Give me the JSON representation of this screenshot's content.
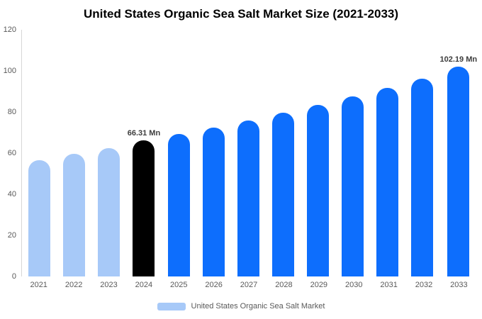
{
  "chart_data": {
    "type": "bar",
    "title": "United States Organic Sea Salt Market Size (2021-2033)",
    "categories": [
      "2021",
      "2022",
      "2023",
      "2024",
      "2025",
      "2026",
      "2027",
      "2028",
      "2029",
      "2030",
      "2031",
      "2032",
      "2033"
    ],
    "values": [
      56.5,
      59.5,
      62.3,
      66.31,
      69.2,
      72.3,
      75.8,
      79.8,
      83.5,
      87.5,
      91.6,
      96.3,
      102.19
    ],
    "unit": "Mn",
    "xlabel": "",
    "ylabel": "",
    "ylim": [
      0,
      120
    ],
    "yticks": [
      0,
      20,
      40,
      60,
      80,
      100,
      120
    ],
    "grid": false,
    "bar_colors": [
      "#a7c9f8",
      "#a7c9f8",
      "#a7c9f8",
      "#000000",
      "#0d6efd",
      "#0d6efd",
      "#0d6efd",
      "#0d6efd",
      "#0d6efd",
      "#0d6efd",
      "#0d6efd",
      "#0d6efd",
      "#0d6efd"
    ],
    "annotations": [
      {
        "index": 3,
        "text": "66.31 Mn"
      },
      {
        "index": 12,
        "text": "102.19 Mn"
      }
    ],
    "legend": {
      "label": "United States Organic Sea Salt Market",
      "swatch_color": "#a7c9f8",
      "position": "bottom"
    }
  }
}
